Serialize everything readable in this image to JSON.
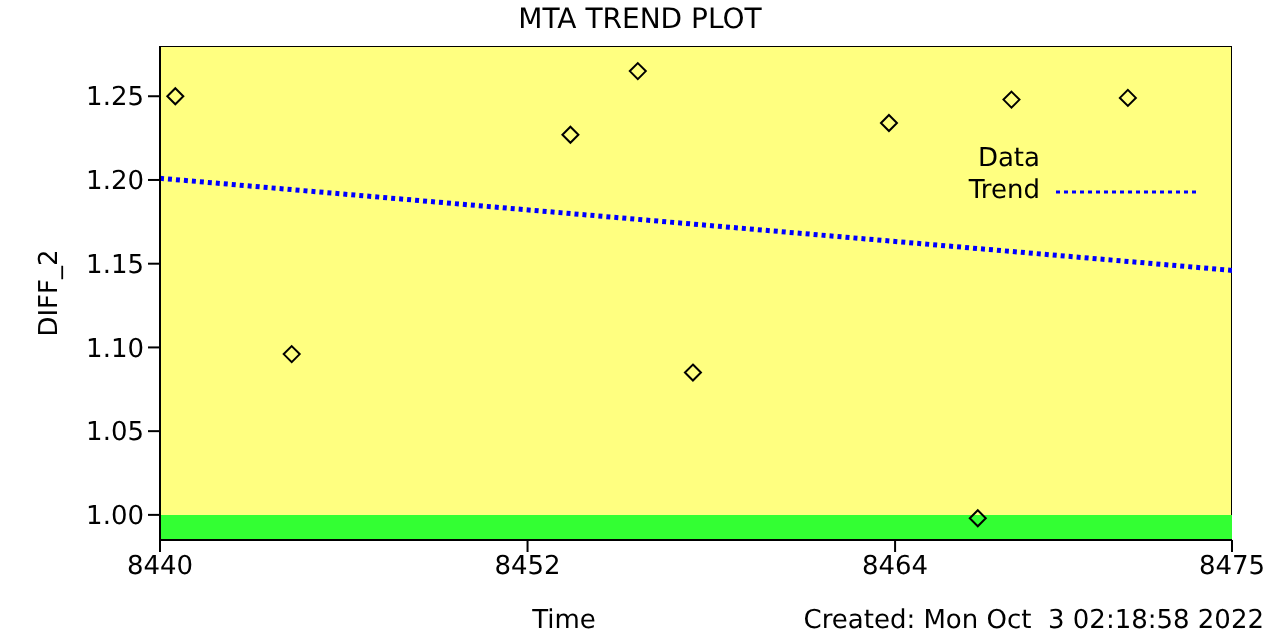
{
  "chart_data": {
    "type": "scatter",
    "title": "MTA TREND PLOT",
    "xlabel": "Time",
    "ylabel": "DIFF_2",
    "annotations": [
      "Created: Mon Oct  3 02:18:58 2022"
    ],
    "xlim": [
      8440,
      8475
    ],
    "xticks": [
      8440,
      8452,
      8464,
      8475
    ],
    "ylim": [
      0.985,
      1.28
    ],
    "yticks": [
      {
        "value": 1.0,
        "label": "1.00"
      },
      {
        "value": 1.05,
        "label": "1.05"
      },
      {
        "value": 1.1,
        "label": "1.10"
      },
      {
        "value": 1.15,
        "label": "1.15"
      },
      {
        "value": 1.2,
        "label": "1.20"
      },
      {
        "value": 1.25,
        "label": "1.25"
      }
    ],
    "bands": [
      {
        "axis": "y",
        "from": 0.985,
        "to": 1.0,
        "color": "#33ff33"
      }
    ],
    "legend": "top right",
    "grid": false,
    "series": [
      {
        "name": "Data",
        "color": "#000000",
        "marker": "diamond",
        "x": [
          8440.5,
          8444.3,
          8453.4,
          8455.6,
          8457.4,
          8463.8,
          8466.7,
          8467.8,
          8471.6
        ],
        "values": [
          1.25,
          1.096,
          1.227,
          1.265,
          1.085,
          1.234,
          0.998,
          1.248,
          1.249
        ]
      },
      {
        "name": "Trend",
        "type": "line",
        "color": "#0000ff",
        "marker": "none",
        "line_style": "dotted",
        "x": [
          8440,
          8475
        ],
        "values": [
          1.201,
          1.146
        ]
      }
    ]
  }
}
